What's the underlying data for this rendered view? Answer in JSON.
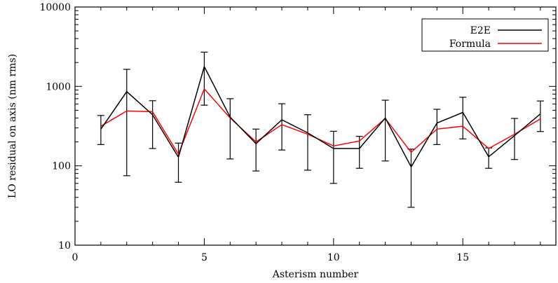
{
  "chart_data": {
    "type": "line",
    "xlabel": "Asterism number",
    "ylabel": "LO residual on axis (nm rms)",
    "xlim": [
      0,
      18.6
    ],
    "ylim": [
      10,
      10000
    ],
    "yscale": "log",
    "grid": false,
    "legend_position": "top-right",
    "x_ticks": [
      0,
      5,
      10,
      15
    ],
    "x_tick_labels": [
      "0",
      "5",
      "10",
      "15"
    ],
    "y_ticks": [
      10,
      100,
      1000,
      10000
    ],
    "y_tick_labels": [
      "10",
      "100",
      "1000",
      "10000"
    ],
    "x": [
      1,
      2,
      3,
      4,
      5,
      6,
      7,
      8,
      9,
      10,
      11,
      12,
      13,
      14,
      15,
      16,
      17,
      18
    ],
    "series": [
      {
        "name": "E2E",
        "color": "#000000",
        "values": [
          290,
          860,
          440,
          128,
          1780,
          410,
          190,
          380,
          260,
          165,
          165,
          400,
          97,
          345,
          470,
          130,
          240,
          450
        ],
        "err_low": [
          185,
          75,
          165,
          62,
          580,
          122,
          86,
          158,
          88,
          60,
          93,
          115,
          30,
          185,
          218,
          93,
          120,
          270
        ],
        "err_high": [
          430,
          1640,
          660,
          193,
          2700,
          700,
          290,
          605,
          440,
          272,
          235,
          670,
          162,
          515,
          730,
          168,
          395,
          655
        ]
      },
      {
        "name": "Formula",
        "color": "#ff0000",
        "values": [
          315,
          490,
          480,
          140,
          930,
          400,
          200,
          330,
          250,
          178,
          205,
          395,
          148,
          290,
          315,
          165,
          250,
          390
        ]
      }
    ]
  }
}
